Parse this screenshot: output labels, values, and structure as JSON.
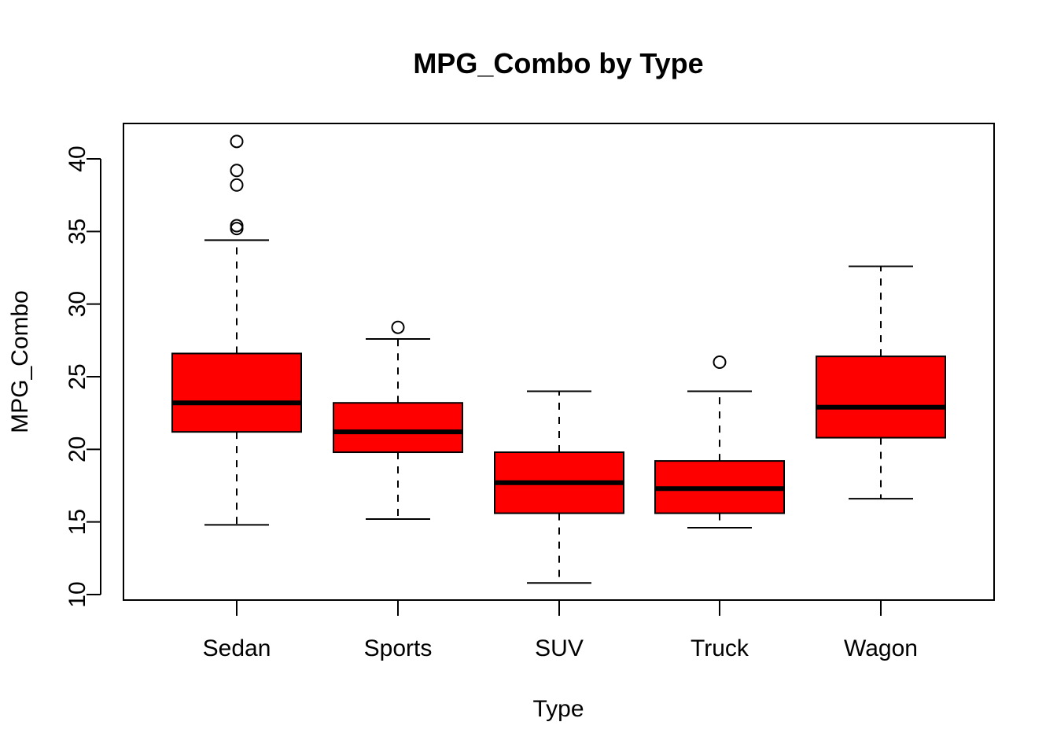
{
  "chart_data": {
    "type": "boxplot",
    "title": "MPG_Combo by Type",
    "xlabel": "Type",
    "ylabel": "MPG_Combo",
    "ylim": [
      10,
      42
    ],
    "yticks": [
      10,
      15,
      20,
      25,
      30,
      35,
      40
    ],
    "ytick_labels": [
      "10",
      "15",
      "20",
      "25",
      "30",
      "35",
      "40"
    ],
    "categories": [
      "Sedan",
      "Sports",
      "SUV",
      "Truck",
      "Wagon"
    ],
    "box_color": "#ff0000",
    "line_color": "#000000",
    "grid": false,
    "boxes": [
      {
        "category": "Sedan",
        "whisker_low": 14.8,
        "q1": 21.2,
        "median": 23.2,
        "q3": 26.6,
        "whisker_high": 34.4,
        "outliers": [
          35.2,
          35.4,
          38.2,
          39.2,
          41.2
        ]
      },
      {
        "category": "Sports",
        "whisker_low": 15.2,
        "q1": 19.8,
        "median": 21.2,
        "q3": 23.2,
        "whisker_high": 27.6,
        "outliers": [
          28.4
        ]
      },
      {
        "category": "SUV",
        "whisker_low": 10.8,
        "q1": 15.6,
        "median": 17.7,
        "q3": 19.8,
        "whisker_high": 24.0,
        "outliers": []
      },
      {
        "category": "Truck",
        "whisker_low": 14.6,
        "q1": 15.6,
        "median": 17.3,
        "q3": 19.2,
        "whisker_high": 24.0,
        "outliers": [
          26.0
        ]
      },
      {
        "category": "Wagon",
        "whisker_low": 16.6,
        "q1": 20.8,
        "median": 22.9,
        "q3": 26.4,
        "whisker_high": 32.6,
        "outliers": []
      }
    ]
  }
}
